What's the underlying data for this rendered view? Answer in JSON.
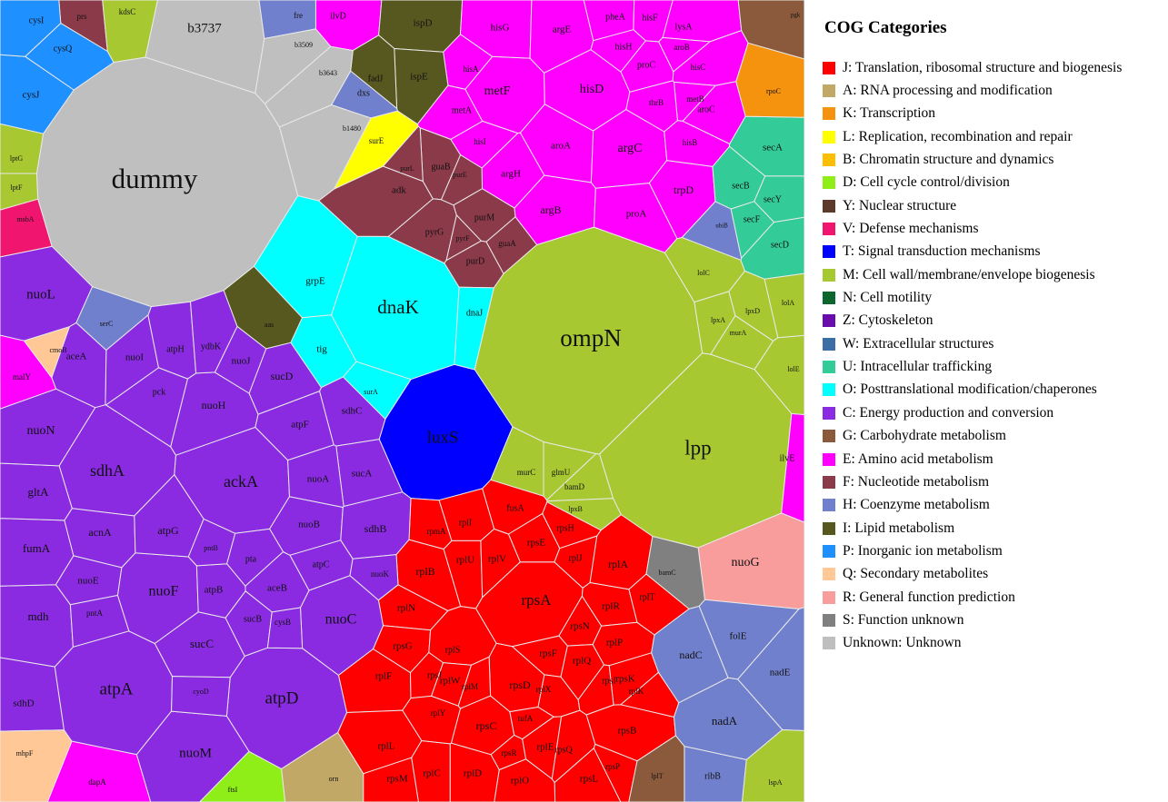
{
  "legend": {
    "title": "COG Categories",
    "items": [
      {
        "code": "J",
        "label": "J: Translation, ribosomal structure and biogenesis",
        "color": "#ff0000"
      },
      {
        "code": "A",
        "label": "A: RNA processing and modification",
        "color": "#c2a867"
      },
      {
        "code": "K",
        "label": "K: Transcription",
        "color": "#f5930f"
      },
      {
        "code": "L",
        "label": "L: Replication, recombination and repair",
        "color": "#ffff00"
      },
      {
        "code": "B",
        "label": "B: Chromatin structure and dynamics",
        "color": "#ffbf00"
      },
      {
        "code": "D",
        "label": "D: Cell cycle control/division",
        "color": "#8fed18"
      },
      {
        "code": "Y",
        "label": "Y: Nuclear structure",
        "color": "#5b3a2c"
      },
      {
        "code": "V",
        "label": "V: Defense mechanisms",
        "color": "#f0156e"
      },
      {
        "code": "T",
        "label": "T: Signal transduction mechanisms",
        "color": "#0000ff"
      },
      {
        "code": "M",
        "label": "M: Cell wall/membrane/envelope biogenesis",
        "color": "#a8c832"
      },
      {
        "code": "N",
        "label": "N: Cell motility",
        "color": "#0d6630"
      },
      {
        "code": "Z",
        "label": "Z: Cytoskeleton",
        "color": "#6a0dad"
      },
      {
        "code": "W",
        "label": "W: Extracellular structures",
        "color": "#3a6ea5"
      },
      {
        "code": "U",
        "label": "U: Intracellular trafficking",
        "color": "#33cc99"
      },
      {
        "code": "O",
        "label": "O: Posttranslational modification/chaperones",
        "color": "#00ffff"
      },
      {
        "code": "C",
        "label": "C: Energy production and conversion",
        "color": "#8a2be2"
      },
      {
        "code": "G",
        "label": "G: Carbohydrate metabolism",
        "color": "#8b5a3c"
      },
      {
        "code": "E",
        "label": "E: Amino acid metabolism",
        "color": "#ff00ff"
      },
      {
        "code": "F",
        "label": "F: Nucleotide metabolism",
        "color": "#8b3a4a"
      },
      {
        "code": "H",
        "label": "H: Coenzyme metabolism",
        "color": "#7080cc"
      },
      {
        "code": "I",
        "label": "I: Lipid metabolism",
        "color": "#575720"
      },
      {
        "code": "P",
        "label": "P: Inorganic ion metabolism",
        "color": "#1e90ff"
      },
      {
        "code": "Q",
        "label": "Q: Secondary metabolites",
        "color": "#ffc896"
      },
      {
        "code": "R",
        "label": "R: General function prediction",
        "color": "#f99c9c"
      },
      {
        "code": "S",
        "label": "S: Function unknown",
        "color": "#808080"
      },
      {
        "code": "Unknown",
        "label": "Unknown: Unknown",
        "color": "#bfbfbf"
      }
    ]
  },
  "cells": [
    {
      "gene": "dummy",
      "cog": "Unknown"
    },
    {
      "gene": "b3737",
      "cog": "Unknown"
    },
    {
      "gene": "ompN",
      "cog": "M"
    },
    {
      "gene": "lpp",
      "cog": "M"
    },
    {
      "gene": "dnaK",
      "cog": "O"
    },
    {
      "gene": "luxS",
      "cog": "T"
    },
    {
      "gene": "rpsA",
      "cog": "J"
    },
    {
      "gene": "rplB",
      "cog": "J"
    },
    {
      "gene": "rplF",
      "cog": "J"
    },
    {
      "gene": "rplL",
      "cog": "J"
    },
    {
      "gene": "rpsD",
      "cog": "J"
    },
    {
      "gene": "rpsC",
      "cog": "J"
    },
    {
      "gene": "rplD",
      "cog": "J"
    },
    {
      "gene": "rplC",
      "cog": "J"
    },
    {
      "gene": "rpsB",
      "cog": "J"
    },
    {
      "gene": "rplA",
      "cog": "J"
    },
    {
      "gene": "rplR",
      "cog": "J"
    },
    {
      "gene": "rplP",
      "cog": "J"
    },
    {
      "gene": "rpsN",
      "cog": "J"
    },
    {
      "gene": "rpsK",
      "cog": "J"
    },
    {
      "gene": "rplN",
      "cog": "J"
    },
    {
      "gene": "rpsG",
      "cog": "J"
    },
    {
      "gene": "rpsM",
      "cog": "J"
    },
    {
      "gene": "rplE",
      "cog": "J"
    },
    {
      "gene": "rpsL",
      "cog": "J"
    },
    {
      "gene": "rplQ",
      "cog": "J"
    },
    {
      "gene": "rpsI",
      "cog": "J"
    },
    {
      "gene": "rplK",
      "cog": "J"
    },
    {
      "gene": "rplO",
      "cog": "J"
    },
    {
      "gene": "rpsE",
      "cog": "J"
    },
    {
      "gene": "rpsH",
      "cog": "J"
    },
    {
      "gene": "rplI",
      "cog": "J"
    },
    {
      "gene": "rplU",
      "cog": "J"
    },
    {
      "gene": "rplV",
      "cog": "J"
    },
    {
      "gene": "rpsF",
      "cog": "J"
    },
    {
      "gene": "rplJ",
      "cog": "J"
    },
    {
      "gene": "rplT",
      "cog": "J"
    },
    {
      "gene": "rplS",
      "cog": "J"
    },
    {
      "gene": "rplW",
      "cog": "J"
    },
    {
      "gene": "rpsJ",
      "cog": "J"
    },
    {
      "gene": "rplX",
      "cog": "J"
    },
    {
      "gene": "rpsQ",
      "cog": "J"
    },
    {
      "gene": "rplY",
      "cog": "J"
    },
    {
      "gene": "fusA",
      "cog": "J"
    },
    {
      "gene": "tufA",
      "cog": "J"
    },
    {
      "gene": "rpmA",
      "cog": "J"
    },
    {
      "gene": "rpsR",
      "cog": "J"
    },
    {
      "gene": "rpsP",
      "cog": "J"
    },
    {
      "gene": "rplM",
      "cog": "J"
    },
    {
      "gene": "atpA",
      "cog": "C"
    },
    {
      "gene": "atpD",
      "cog": "C"
    },
    {
      "gene": "sdhA",
      "cog": "C"
    },
    {
      "gene": "ackA",
      "cog": "C"
    },
    {
      "gene": "nuoF",
      "cog": "C"
    },
    {
      "gene": "nuoC",
      "cog": "C"
    },
    {
      "gene": "nuoM",
      "cog": "C"
    },
    {
      "gene": "sucC",
      "cog": "C"
    },
    {
      "gene": "mdh",
      "cog": "C"
    },
    {
      "gene": "fumA",
      "cog": "C"
    },
    {
      "gene": "gltA",
      "cog": "C"
    },
    {
      "gene": "nuoN",
      "cog": "C"
    },
    {
      "gene": "nuoL",
      "cog": "C"
    },
    {
      "gene": "acnA",
      "cog": "C"
    },
    {
      "gene": "atpG",
      "cog": "C"
    },
    {
      "gene": "atpB",
      "cog": "C"
    },
    {
      "gene": "aceB",
      "cog": "C"
    },
    {
      "gene": "nuoB",
      "cog": "C"
    },
    {
      "gene": "sdhB",
      "cog": "C"
    },
    {
      "gene": "sdhC",
      "cog": "C"
    },
    {
      "gene": "sucA",
      "cog": "C"
    },
    {
      "gene": "nuoA",
      "cog": "C"
    },
    {
      "gene": "atpF",
      "cog": "C"
    },
    {
      "gene": "nuoH",
      "cog": "C"
    },
    {
      "gene": "sucD",
      "cog": "C"
    },
    {
      "gene": "nuoJ",
      "cog": "C"
    },
    {
      "gene": "nuoI",
      "cog": "C"
    },
    {
      "gene": "atpH",
      "cog": "C"
    },
    {
      "gene": "ydbK",
      "cog": "C"
    },
    {
      "gene": "pck",
      "cog": "C"
    },
    {
      "gene": "aceA",
      "cog": "C"
    },
    {
      "gene": "nuoE",
      "cog": "C"
    },
    {
      "gene": "pntA",
      "cog": "C"
    },
    {
      "gene": "pntB",
      "cog": "C"
    },
    {
      "gene": "pta",
      "cog": "C"
    },
    {
      "gene": "atpC",
      "cog": "C"
    },
    {
      "gene": "sucB",
      "cog": "C"
    },
    {
      "gene": "cysB",
      "cog": "C"
    },
    {
      "gene": "nuoK",
      "cog": "C"
    },
    {
      "gene": "sdhD",
      "cog": "C"
    },
    {
      "gene": "cyoD",
      "cog": "C"
    },
    {
      "gene": "metF",
      "cog": "E"
    },
    {
      "gene": "hisD",
      "cog": "E"
    },
    {
      "gene": "argC",
      "cog": "E"
    },
    {
      "gene": "trpD",
      "cog": "E"
    },
    {
      "gene": "argB",
      "cog": "E"
    },
    {
      "gene": "proA",
      "cog": "E"
    },
    {
      "gene": "aroA",
      "cog": "E"
    },
    {
      "gene": "argH",
      "cog": "E"
    },
    {
      "gene": "hisG",
      "cog": "E"
    },
    {
      "gene": "argE",
      "cog": "E"
    },
    {
      "gene": "pheA",
      "cog": "E"
    },
    {
      "gene": "hisF",
      "cog": "E"
    },
    {
      "gene": "hisH",
      "cog": "E"
    },
    {
      "gene": "proC",
      "cog": "E"
    },
    {
      "gene": "lysA",
      "cog": "E"
    },
    {
      "gene": "aroB",
      "cog": "E"
    },
    {
      "gene": "hisC",
      "cog": "E"
    },
    {
      "gene": "aroC",
      "cog": "E"
    },
    {
      "gene": "metB",
      "cog": "E"
    },
    {
      "gene": "thrB",
      "cog": "E"
    },
    {
      "gene": "hisB",
      "cog": "E"
    },
    {
      "gene": "hisI",
      "cog": "E"
    },
    {
      "gene": "hisA",
      "cog": "E"
    },
    {
      "gene": "metA",
      "cog": "E"
    },
    {
      "gene": "ilvD",
      "cog": "E"
    },
    {
      "gene": "ilvE",
      "cog": "E"
    },
    {
      "gene": "malY",
      "cog": "E"
    },
    {
      "gene": "dapA",
      "cog": "E"
    },
    {
      "gene": "adk",
      "cog": "F"
    },
    {
      "gene": "guaB",
      "cog": "F"
    },
    {
      "gene": "pyrG",
      "cog": "F"
    },
    {
      "gene": "purM",
      "cog": "F"
    },
    {
      "gene": "purD",
      "cog": "F"
    },
    {
      "gene": "guaA",
      "cog": "F"
    },
    {
      "gene": "pyrF",
      "cog": "F"
    },
    {
      "gene": "purL",
      "cog": "F"
    },
    {
      "gene": "purE",
      "cog": "F"
    },
    {
      "gene": "prs",
      "cog": "F"
    },
    {
      "gene": "msbA",
      "cog": "V"
    },
    {
      "gene": "ispD",
      "cog": "I"
    },
    {
      "gene": "ispE",
      "cog": "I"
    },
    {
      "gene": "fadJ",
      "cog": "I"
    },
    {
      "gene": "aas",
      "cog": "I"
    },
    {
      "gene": "secA",
      "cog": "U"
    },
    {
      "gene": "secB",
      "cog": "U"
    },
    {
      "gene": "secY",
      "cog": "U"
    },
    {
      "gene": "secF",
      "cog": "U"
    },
    {
      "gene": "secD",
      "cog": "U"
    },
    {
      "gene": "grpE",
      "cog": "O"
    },
    {
      "gene": "tig",
      "cog": "O"
    },
    {
      "gene": "dnaJ",
      "cog": "O"
    },
    {
      "gene": "surA",
      "cog": "O"
    },
    {
      "gene": "nuoG",
      "cog": "R"
    },
    {
      "gene": "nadC",
      "cog": "H"
    },
    {
      "gene": "folE",
      "cog": "H"
    },
    {
      "gene": "nadE",
      "cog": "H"
    },
    {
      "gene": "nadA",
      "cog": "H"
    },
    {
      "gene": "ribB",
      "cog": "H"
    },
    {
      "gene": "dxs",
      "cog": "H"
    },
    {
      "gene": "serC",
      "cog": "H"
    },
    {
      "gene": "ubiB",
      "cog": "H"
    },
    {
      "gene": "fre",
      "cog": "H"
    },
    {
      "gene": "cysJ",
      "cog": "P"
    },
    {
      "gene": "cysQ",
      "cog": "P"
    },
    {
      "gene": "cysI",
      "cog": "P"
    },
    {
      "gene": "mhpF",
      "cog": "Q"
    },
    {
      "gene": "cmoB",
      "cog": "Q"
    },
    {
      "gene": "orn",
      "cog": "A"
    },
    {
      "gene": "ftsI",
      "cog": "D"
    },
    {
      "gene": "lspA",
      "cog": "M"
    },
    {
      "gene": "kdsC",
      "cog": "M"
    },
    {
      "gene": "lptG",
      "cog": "M"
    },
    {
      "gene": "lptF",
      "cog": "M"
    },
    {
      "gene": "murC",
      "cog": "M"
    },
    {
      "gene": "glmU",
      "cog": "M"
    },
    {
      "gene": "bamD",
      "cog": "M"
    },
    {
      "gene": "lpxB",
      "cog": "M"
    },
    {
      "gene": "lolC",
      "cog": "M"
    },
    {
      "gene": "lpxA",
      "cog": "M"
    },
    {
      "gene": "lolE",
      "cog": "M"
    },
    {
      "gene": "lpxD",
      "cog": "M"
    },
    {
      "gene": "murA",
      "cog": "M"
    },
    {
      "gene": "lolA",
      "cog": "M"
    },
    {
      "gene": "surE",
      "cog": "L"
    },
    {
      "gene": "rpoC",
      "cog": "K"
    },
    {
      "gene": "pgk",
      "cog": "G"
    },
    {
      "gene": "lplT",
      "cog": "G"
    },
    {
      "gene": "bamC",
      "cog": "S"
    },
    {
      "gene": "b3509",
      "cog": "Unknown"
    },
    {
      "gene": "b3643",
      "cog": "Unknown"
    },
    {
      "gene": "b1480",
      "cog": "Unknown"
    }
  ]
}
